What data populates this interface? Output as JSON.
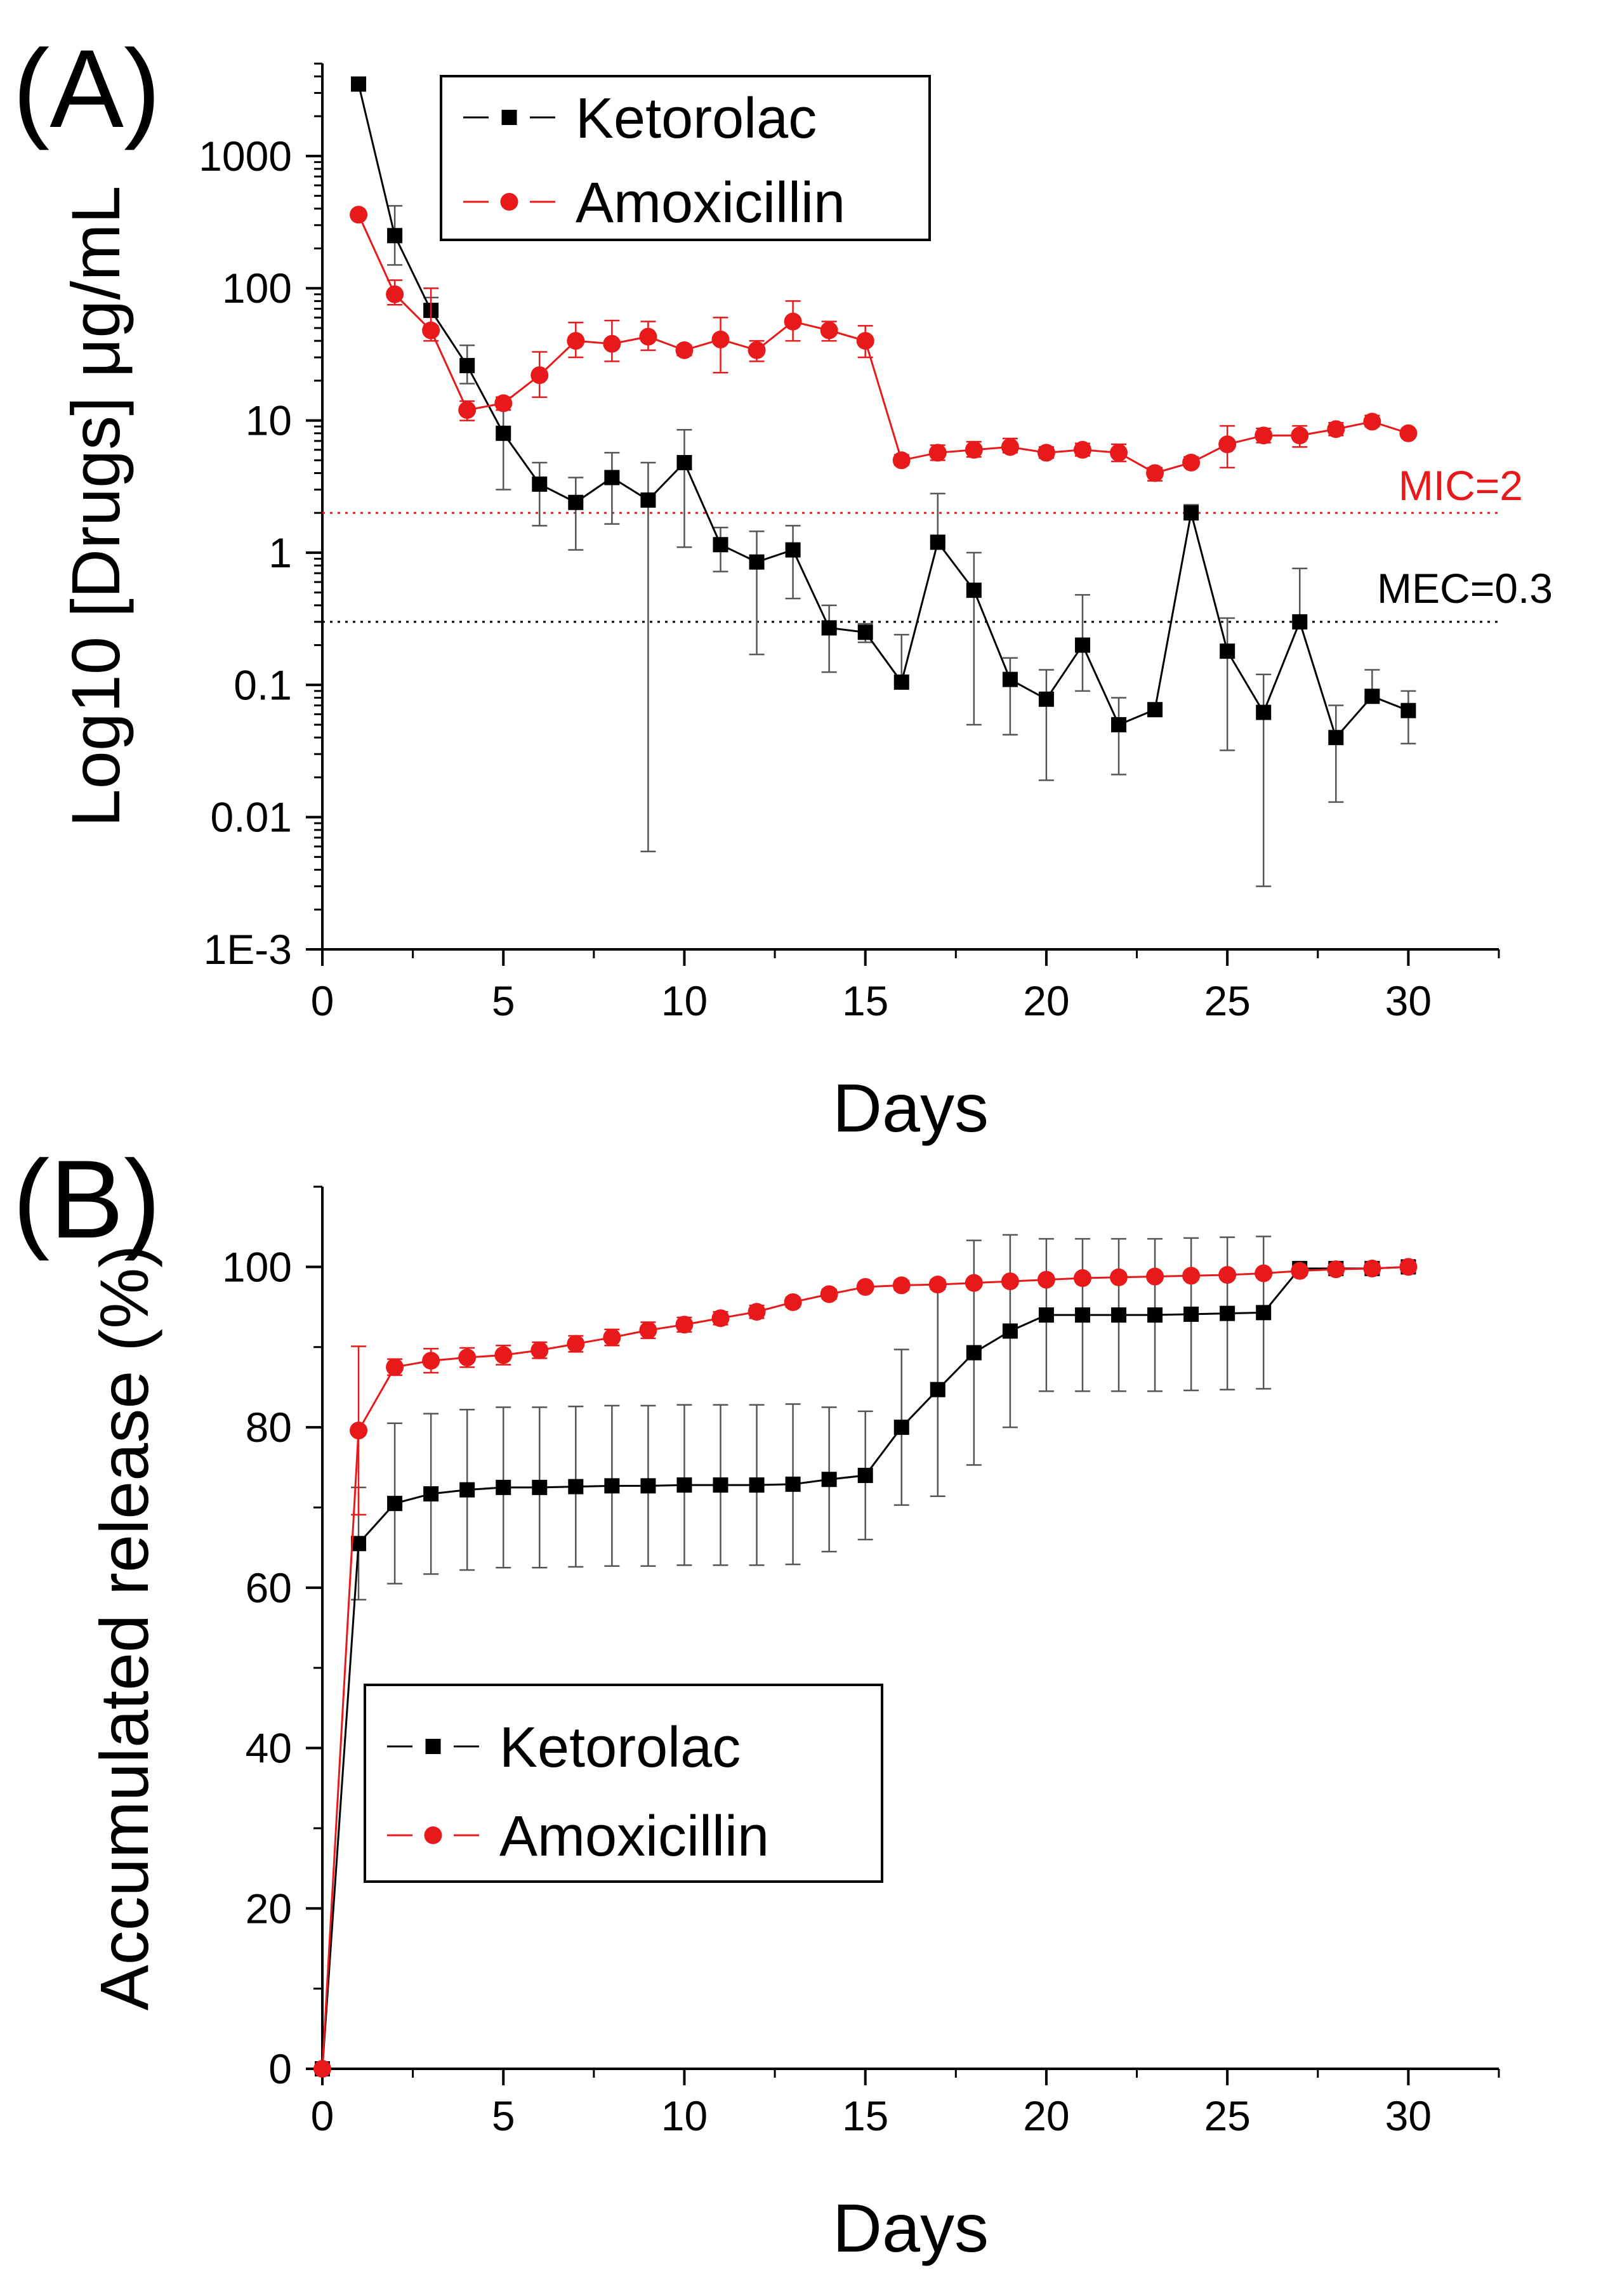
{
  "chart_data": [
    {
      "panel_label": "(A)",
      "type": "line",
      "yscale": "log",
      "xlabel": "Days",
      "ylabel": "Log10 [Drugs] μg/mL",
      "xlim": [
        0,
        32.5
      ],
      "ylim_log10": [
        -3,
        3.7
      ],
      "x_ticks": [
        0,
        5,
        10,
        15,
        20,
        25,
        30
      ],
      "x_tick_labels": [
        "0",
        "5",
        "10",
        "15",
        "20",
        "25",
        "30"
      ],
      "y_ticks": [
        0.001,
        0.01,
        0.1,
        1,
        10,
        100,
        1000
      ],
      "y_tick_labels": [
        "1E-3",
        "0.01",
        "0.1",
        "1",
        "10",
        "100",
        "1000"
      ],
      "legend_position": "top-center",
      "reference_lines": [
        {
          "name": "MIC",
          "label": "MIC=2",
          "value": 2,
          "color": "#e8191b"
        },
        {
          "name": "MEC",
          "label": "MEC=0.3",
          "value": 0.3,
          "color": "#000000"
        }
      ],
      "series": [
        {
          "name": "Ketorolac",
          "color": "#000000",
          "marker": "square",
          "x": [
            1,
            2,
            3,
            4,
            5,
            6,
            7,
            8,
            9,
            10,
            11,
            12,
            13,
            14,
            15,
            16,
            17,
            18,
            19,
            20,
            21,
            22,
            23,
            24,
            25,
            26,
            27,
            28,
            29,
            30
          ],
          "values": [
            3500,
            250,
            68,
            26,
            8,
            3.3,
            2.4,
            3.7,
            2.5,
            4.8,
            1.15,
            0.85,
            1.05,
            0.27,
            0.25,
            0.105,
            1.2,
            0.52,
            0.11,
            0.078,
            0.2,
            0.05,
            0.065,
            2,
            0.18,
            0.062,
            0.3,
            0.04,
            0.082,
            0.064
          ],
          "err_low": [
            3500,
            150,
            52,
            19,
            3,
            1.6,
            1.05,
            1.65,
            0.0055,
            1.1,
            0.72,
            0.17,
            0.45,
            0.125,
            0.21,
            0.105,
            1.2,
            0.05,
            0.042,
            0.019,
            0.09,
            0.021,
            0.058,
            1.8,
            0.032,
            0.003,
            0.3,
            0.013,
            0.08,
            0.036
          ],
          "err_high": [
            3500,
            420,
            85,
            37,
            15,
            4.8,
            3.7,
            5.7,
            4.8,
            8.5,
            1.55,
            1.45,
            1.6,
            0.4,
            0.29,
            0.24,
            2.8,
            1,
            0.16,
            0.13,
            0.48,
            0.08,
            0.072,
            2.3,
            0.32,
            0.12,
            0.76,
            0.07,
            0.13,
            0.09
          ]
        },
        {
          "name": "Amoxicillin",
          "color": "#e8191b",
          "marker": "circle",
          "x": [
            1,
            2,
            3,
            4,
            5,
            6,
            7,
            8,
            9,
            10,
            11,
            12,
            13,
            14,
            15,
            16,
            17,
            18,
            19,
            20,
            21,
            22,
            23,
            24,
            25,
            26,
            27,
            28,
            29,
            30
          ],
          "values": [
            360,
            90,
            48,
            12,
            13.5,
            22,
            40,
            38,
            43,
            34,
            41,
            34,
            56,
            48,
            40,
            5,
            5.7,
            6,
            6.3,
            5.7,
            6,
            5.7,
            4,
            4.8,
            6.6,
            7.7,
            7.7,
            8.6,
            9.8,
            8
          ],
          "err_low": [
            360,
            75,
            40,
            10,
            12,
            15,
            30,
            28,
            34,
            31,
            23,
            28,
            40,
            40,
            30,
            4.6,
            5,
            5.3,
            5.7,
            5.2,
            5.4,
            4.9,
            3.5,
            4.5,
            4.4,
            6.8,
            6.3,
            7.7,
            9,
            7.6
          ],
          "err_high": [
            360,
            115,
            100,
            14,
            15,
            33,
            55,
            57,
            56,
            37,
            60,
            40,
            80,
            56,
            52,
            5.5,
            6.5,
            6.9,
            7.3,
            6.3,
            6.7,
            6.6,
            4.4,
            5.3,
            9.1,
            8.7,
            9.1,
            9.6,
            10.9,
            8.5
          ]
        }
      ]
    },
    {
      "panel_label": "(B)",
      "type": "line",
      "xlabel": "Days",
      "ylabel": "Accumulated release (%)",
      "xlim": [
        0,
        32.5
      ],
      "ylim": [
        0,
        110
      ],
      "x_ticks": [
        0,
        5,
        10,
        15,
        20,
        25,
        30
      ],
      "x_tick_labels": [
        "0",
        "5",
        "10",
        "15",
        "20",
        "25",
        "30"
      ],
      "y_ticks": [
        0,
        20,
        40,
        60,
        80,
        100
      ],
      "y_tick_labels": [
        "0",
        "20",
        "40",
        "60",
        "80",
        "100"
      ],
      "legend_position": "bottom-left",
      "series": [
        {
          "name": "Ketorolac",
          "color": "#000000",
          "marker": "square",
          "x": [
            0,
            1,
            2,
            3,
            4,
            5,
            6,
            7,
            8,
            9,
            10,
            11,
            12,
            13,
            14,
            15,
            16,
            17,
            18,
            19,
            20,
            21,
            22,
            23,
            24,
            25,
            26,
            27,
            28,
            29,
            30
          ],
          "values": [
            0,
            65.5,
            70.5,
            71.7,
            72.2,
            72.5,
            72.5,
            72.6,
            72.7,
            72.7,
            72.8,
            72.8,
            72.8,
            72.9,
            73.5,
            74,
            80,
            84.7,
            89.3,
            92,
            94,
            94,
            94,
            94,
            94.1,
            94.2,
            94.3,
            99.8,
            99.8,
            99.8,
            100
          ],
          "err": [
            0,
            7,
            10,
            10,
            10,
            10,
            10,
            10,
            10,
            10,
            10,
            10,
            10,
            10,
            9,
            8,
            9.7,
            13.3,
            14,
            12,
            9.5,
            9.5,
            9.5,
            9.5,
            9.5,
            9.5,
            9.5,
            0,
            0,
            0,
            0
          ]
        },
        {
          "name": "Amoxicillin",
          "color": "#e8191b",
          "marker": "circle",
          "x": [
            0,
            1,
            2,
            3,
            4,
            5,
            6,
            7,
            8,
            9,
            10,
            11,
            12,
            13,
            14,
            15,
            16,
            17,
            18,
            19,
            20,
            21,
            22,
            23,
            24,
            25,
            26,
            27,
            28,
            29,
            30
          ],
          "values": [
            0,
            79.6,
            87.5,
            88.3,
            88.7,
            89,
            89.6,
            90.4,
            91.2,
            92.1,
            92.8,
            93.6,
            94.4,
            95.6,
            96.6,
            97.5,
            97.7,
            97.8,
            98,
            98.2,
            98.4,
            98.6,
            98.7,
            98.8,
            98.9,
            99,
            99.2,
            99.5,
            99.7,
            99.8,
            100
          ],
          "err": [
            0,
            10.5,
            1,
            1.5,
            1.2,
            1.2,
            1,
            1,
            1,
            1,
            0.9,
            0.8,
            0.8,
            0.6,
            0.6,
            0.5,
            0.6,
            0.6,
            0.5,
            0.5,
            0.5,
            0.5,
            0.5,
            0.5,
            0.5,
            0.5,
            0.5,
            0.4,
            0.3,
            0.3,
            0.3
          ]
        }
      ]
    }
  ]
}
